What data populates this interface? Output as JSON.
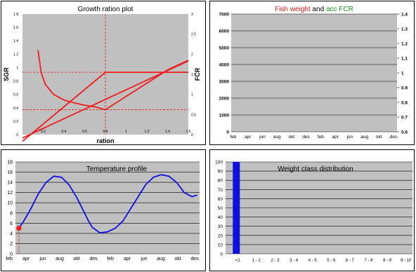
{
  "colors": {
    "plot_bg": "#c0c0c0",
    "red": "#ee1c1c",
    "blue": "#1010dd",
    "green": "#1a9a1a",
    "grid": "#000000"
  },
  "panels": {
    "growth": {
      "title": "Growth ration plot",
      "xlabel": "ration",
      "ylabel_left": "SGR",
      "ylabel_right": "FCR"
    },
    "fish": {
      "title_part1": "Fish weight",
      "title_and": "and",
      "title_part2": "acc FCR"
    },
    "temp": {
      "title": "Temperature profile"
    },
    "weight": {
      "title": "Weight class distribution"
    }
  },
  "chart_data": [
    {
      "type": "line",
      "title": "Growth ration plot",
      "xlabel": "ration",
      "ylabel": "SGR",
      "ylabel_right": "FCR",
      "xlim": [
        0,
        1.6
      ],
      "ylim": [
        0,
        1.8
      ],
      "ylim_right": [
        0,
        3
      ],
      "x_ticks": [
        "0.2",
        "0.4",
        "0.6",
        "0.8",
        "1",
        "1.2",
        "1.4",
        "1.6"
      ],
      "y_ticks": [
        "0",
        "0.2",
        "0.4",
        "0.6",
        "0.8",
        "1",
        "1.2",
        "1.4",
        "1.6",
        "1.8"
      ],
      "y_ticks_right": [
        "0",
        "0.5",
        "1",
        "1.5",
        "2",
        "2.5",
        "3"
      ],
      "grid": false,
      "series": [
        {
          "axis": "left",
          "x": [
            0,
            0.8,
            1.6
          ],
          "y": [
            -0.1,
            0.93,
            0.93
          ]
        },
        {
          "axis": "right",
          "x": [
            0.15,
            0.18,
            0.22,
            0.3,
            0.4,
            0.5,
            0.6,
            0.7,
            0.8,
            1.0,
            1.2,
            1.4,
            1.6
          ],
          "y": [
            2.1,
            1.55,
            1.25,
            1.0,
            0.86,
            0.79,
            0.73,
            0.69,
            0.62,
            0.95,
            1.28,
            1.61,
            1.85
          ]
        },
        {
          "axis": "left",
          "x": [
            0,
            1.6
          ],
          "y": [
            -0.05,
            1.1
          ]
        }
      ],
      "reference_lines": [
        {
          "orientation": "horizontal",
          "axis": "left",
          "value": 0.93
        },
        {
          "orientation": "vertical",
          "value": 0.8
        },
        {
          "orientation": "horizontal",
          "axis": "right",
          "value": 0.62
        }
      ]
    },
    {
      "type": "line",
      "title": "Fish weight and acc FCR",
      "ylim": [
        0,
        7000
      ],
      "ylim_right": [
        0.6,
        1.4
      ],
      "y_ticks": [
        "0",
        "1000",
        "2000",
        "3000",
        "4000",
        "5000",
        "6000",
        "7000"
      ],
      "y_ticks_right": [
        "0.6",
        "0.7",
        "0.8",
        "0.9",
        "1",
        "1.1",
        "1.2",
        "1.3",
        "1.4"
      ],
      "x_ticks": [
        "feb",
        "apr",
        "jun",
        "aug",
        "okt",
        "des",
        "feb",
        "apr",
        "jun",
        "aug",
        "okt",
        "des"
      ],
      "grid": true,
      "series": []
    },
    {
      "type": "line",
      "title": "Temperature profile",
      "ylim": [
        0,
        18
      ],
      "y_ticks": [
        "0",
        "2",
        "4",
        "6",
        "8",
        "10",
        "12",
        "14",
        "16",
        "18"
      ],
      "x_ticks": [
        "feb",
        "apr",
        "jun",
        "aug",
        "okt",
        "des",
        "feb",
        "apr",
        "jun",
        "aug",
        "okt",
        "des"
      ],
      "grid": true,
      "series": [
        {
          "x": [
            0.45,
            1,
            2,
            3,
            4,
            5,
            6,
            7,
            8,
            9,
            9.5,
            10,
            11,
            12,
            13,
            14,
            15,
            15.5,
            16,
            17,
            18,
            19,
            20,
            21,
            22,
            23,
            23.7
          ],
          "y": [
            5.1,
            6.2,
            8.8,
            11.8,
            14.0,
            15.2,
            15.0,
            13.5,
            11.0,
            8.0,
            6.5,
            5.2,
            4.1,
            4.3,
            5.0,
            6.4,
            8.8,
            10.0,
            11.2,
            13.6,
            15.0,
            15.5,
            15.2,
            14.0,
            12.0,
            11.2,
            11.5
          ]
        }
      ],
      "marker": {
        "x": 0.45,
        "y": 5.0
      }
    },
    {
      "type": "bar",
      "title": "Weight class distribution",
      "categories": [
        "<1",
        "1 - 2",
        "2 - 3",
        "3 - 4",
        "4 - 5",
        "5 - 6",
        "6 - 7",
        "7 - 8",
        "8 - 9",
        "9 - 10"
      ],
      "values": [
        100,
        0,
        0,
        0,
        0,
        0,
        0,
        0,
        0,
        0
      ],
      "ylim": [
        0,
        100
      ],
      "y_ticks": [
        "0",
        "10",
        "20",
        "30",
        "40",
        "50",
        "60",
        "70",
        "80",
        "90",
        "100"
      ],
      "grid": true
    }
  ]
}
